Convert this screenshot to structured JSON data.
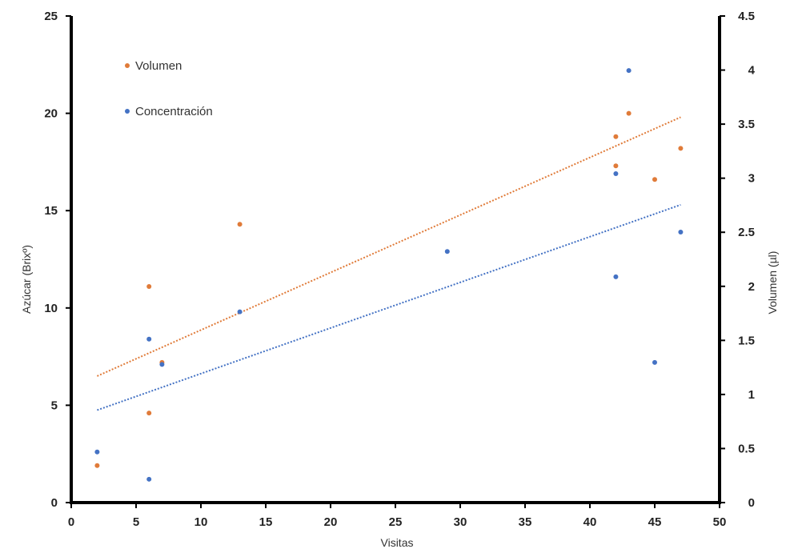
{
  "chart_data": {
    "type": "scatter",
    "xlabel": "Visitas",
    "ylabel_left": "Azúcar (Brixº)",
    "ylabel_right": "Volumen  (µl)",
    "xlim": [
      0,
      50
    ],
    "ylim_left": [
      0,
      25
    ],
    "ylim_right": [
      0,
      4.5
    ],
    "xticks": [
      "0",
      "5",
      "10",
      "15",
      "20",
      "25",
      "30",
      "35",
      "40",
      "45",
      "50"
    ],
    "yticks_left": [
      "0",
      "5",
      "10",
      "15",
      "20",
      "25"
    ],
    "yticks_right": [
      "0",
      "0.5",
      "1",
      "1.5",
      "2",
      "2.5",
      "3",
      "3.5",
      "4",
      "4.5"
    ],
    "grid": false,
    "legend_position": "top-left",
    "series": [
      {
        "name": "Volumen",
        "axis": "left",
        "color": "#E07B39",
        "x": [
          2,
          6,
          6,
          7,
          13,
          42,
          42,
          43,
          45,
          47
        ],
        "y": [
          1.9,
          11.1,
          4.6,
          7.2,
          14.3,
          18.8,
          17.3,
          20.0,
          16.6,
          18.2
        ],
        "trendline": {
          "style": "dotted",
          "from": [
            2,
            6.5
          ],
          "to": [
            47,
            19.8
          ]
        }
      },
      {
        "name": "Concentración",
        "axis": "left",
        "color": "#4472C4",
        "x": [
          2,
          6,
          6,
          7,
          13,
          29,
          42,
          42,
          43,
          45,
          47
        ],
        "y": [
          2.6,
          8.4,
          1.2,
          7.1,
          9.8,
          12.9,
          16.9,
          11.6,
          22.2,
          7.2,
          13.9
        ],
        "trendline": {
          "style": "dotted",
          "from": [
            2,
            4.75
          ],
          "to": [
            47,
            15.3
          ]
        }
      }
    ]
  }
}
